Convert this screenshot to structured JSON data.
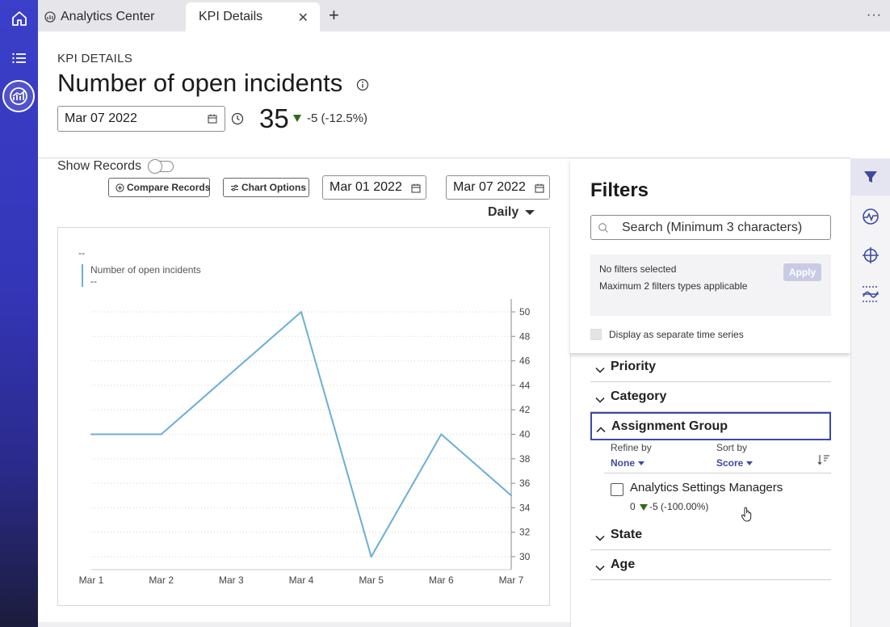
{
  "tabs": {
    "analytics_center": "Analytics Center",
    "kpi_details": "KPI Details",
    "close_glyph": "✕",
    "new_tab_glyph": "+",
    "more_glyph": "···"
  },
  "header": {
    "label": "KPI DETAILS",
    "title": "Number of open incidents",
    "date": "Mar 07 2022",
    "value": "35",
    "delta": "-5 (-12.5%)",
    "trend_color": "#2e6a16"
  },
  "controls": {
    "show_records": "Show Records",
    "show_records_on": false,
    "compare_records": "Compare Records",
    "chart_options": "Chart Options",
    "start_date": "Mar 01 2022",
    "end_date": "Mar 07 2022",
    "interval": "Daily"
  },
  "chart_data": {
    "type": "line",
    "legend_header": "--",
    "series": [
      {
        "name": "Number of open incidents",
        "legend_value": "--",
        "color": "#6baed6",
        "values": [
          40,
          40,
          45,
          50,
          30,
          40,
          35
        ]
      }
    ],
    "x": [
      "Mar 1",
      "Mar 2",
      "Mar 3",
      "Mar 4",
      "Mar 5",
      "Mar 6",
      "Mar 7"
    ],
    "y_ticks": [
      30,
      32,
      34,
      36,
      38,
      40,
      42,
      44,
      46,
      48,
      50
    ],
    "ylim": [
      30,
      50
    ],
    "y_axis_side": "right",
    "grid": "dotted horizontal"
  },
  "filters": {
    "title": "Filters",
    "search_placeholder": "Search (Minimum 3 characters)",
    "no_filters": "No filters selected",
    "max_filters": "Maximum 2 filters types applicable",
    "apply": "Apply",
    "separate_series": "Display as separate time series",
    "groups": {
      "priority": "Priority",
      "category": "Category",
      "assignment_group": "Assignment Group",
      "state": "State",
      "age": "Age"
    },
    "refine_by_label": "Refine by",
    "refine_by_value": "None",
    "sort_by_label": "Sort by",
    "sort_by_value": "Score",
    "option": {
      "label": "Analytics Settings Managers",
      "count": "0",
      "delta": "-5 (-100.00%)"
    }
  },
  "colors": {
    "accent": "#3c4aa3",
    "rail_top": "#3b3fc9",
    "line": "#6baed6"
  },
  "icons": [
    "home-icon",
    "list-icon",
    "analytics-icon",
    "filter-icon",
    "pulse-icon",
    "target-icon",
    "strike-icon"
  ]
}
